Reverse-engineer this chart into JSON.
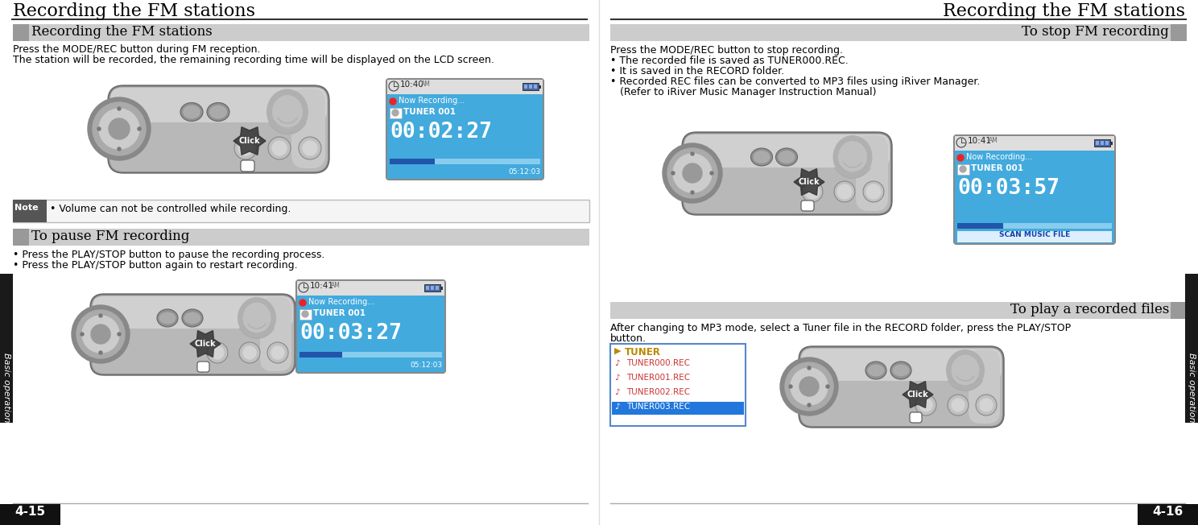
{
  "page_bg": "#ffffff",
  "left_title": "Recording the FM stations",
  "right_title": "Recording the FM stations",
  "page_left": "4-15",
  "page_right": "4-16",
  "sidebar_text": "Basic operation",
  "sidebar_bg": "#1a1a1a",
  "sidebar_text_color": "#ffffff",
  "section_bar_color": "#cccccc",
  "left_section1_title": "Recording the FM stations",
  "left_section1_body_line1": "Press the MODE/REC button during FM reception.",
  "left_section1_body_line2": "The station will be recorded, the remaining recording time will be displayed on the LCD screen.",
  "left_note_label": "Note",
  "left_note_text": "• Volume can not be controlled while recording.",
  "left_section2_title": "To pause FM recording",
  "left_section2_body_line1": "• Press the PLAY/STOP button to pause the recording process.",
  "left_section2_body_line2": "• Press the PLAY/STOP button again to restart recording.",
  "right_section1_title": "To stop FM recording",
  "right_section1_body_line1": "Press the MODE/REC button to stop recording.",
  "right_section1_body_line2": "• The recorded file is saved as TUNER000.REC.",
  "right_section1_body_line3": "• It is saved in the RECORD folder.",
  "right_section1_body_line4": "• Recorded REC files can be converted to MP3 files using iRiver Manager.",
  "right_section1_body_line5": "   (Refer to iRiver Music Manager Instruction Manual)",
  "right_section2_title": "To play a recorded files",
  "right_section2_body_line1": "After changing to MP3 mode, select a Tuner file in the RECORD folder, press the PLAY/STOP",
  "right_section2_body_line2": "button.",
  "lcd_bg": "#42aadd",
  "lcd_border": "#888888",
  "lcd_header_bg": "#dedede",
  "lcd_time1": "10:40",
  "lcd_am_badge": "AM",
  "lcd_rec_dot": "#ee2222",
  "lcd_rec_text": "Now Recording...",
  "lcd_tuner": "TUNER 001",
  "lcd_time_display1": "00:02:27",
  "lcd_remaining1": "05:12:03",
  "lcd_time2": "10:41",
  "lcd_time_display2": "00:03:27",
  "lcd_remaining2": "05:12:03",
  "lcd_time3": "10:41",
  "lcd_time_display3": "00:03:57",
  "lcd_scan": "SCAN MUSIC FILE",
  "file_list_border": "#5588cc",
  "file_list_bg": "#ffffff",
  "file_folder_color": "#bb8800",
  "file_folder_name": "TUNER",
  "file_items": [
    "TUNER000.REC",
    "TUNER001.REC",
    "TUNER002.REC",
    "TUNER003.REC"
  ],
  "file_item_color": "#cc3333",
  "file_selected_bg": "#2277dd",
  "file_selected_color": "#ffffff",
  "file_selected_index": 3,
  "dev_body": "#b8b8b8",
  "dev_dark": "#888888",
  "dev_darker": "#555555",
  "dev_light": "#d8d8d8",
  "dev_highlight": "#e8e8e8"
}
